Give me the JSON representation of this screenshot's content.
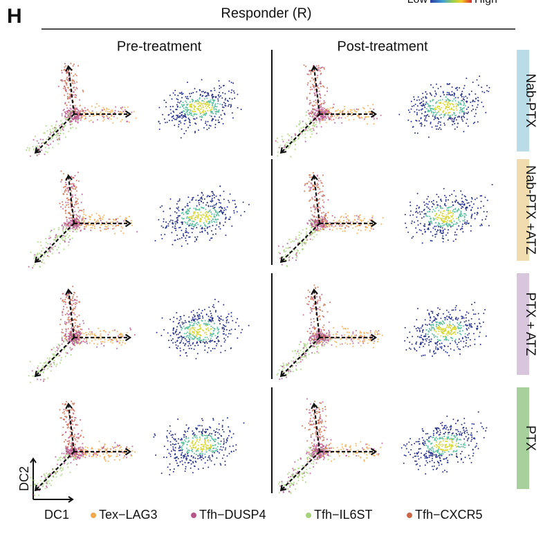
{
  "panel_label": "H",
  "group": "Responder (R)",
  "scale": {
    "low": "Low",
    "high": "High"
  },
  "columns": [
    "Pre-treatment",
    "Post-treatment"
  ],
  "rows": [
    {
      "label": "Nab-PTX",
      "color": "#b9dce6"
    },
    {
      "label": "Nab-PTX +ATZ",
      "color": "#f0dcae"
    },
    {
      "label": "PTX + ATZ",
      "color": "#d8c6dc"
    },
    {
      "label": "PTX",
      "color": "#a8d09c"
    }
  ],
  "axes": {
    "x": "DC1",
    "y": "DC2"
  },
  "legend": [
    {
      "label": "Tex−LAG3",
      "color": "#f0a84a"
    },
    {
      "label": "Tfh−DUSP4",
      "color": "#b4568a"
    },
    {
      "label": "Tfh−IL6ST",
      "color": "#a6d27a"
    },
    {
      "label": "Tfh−CXCR5",
      "color": "#c86848"
    }
  ]
}
